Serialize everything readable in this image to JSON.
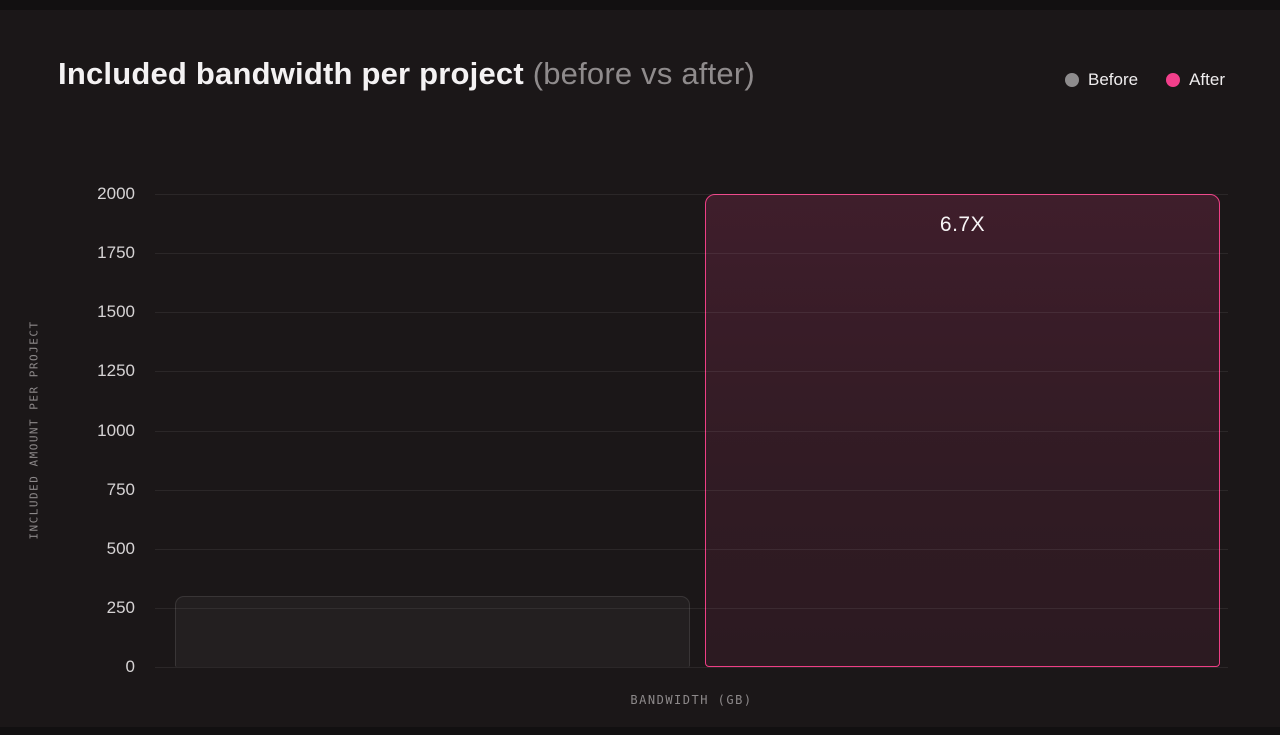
{
  "title": {
    "main": "Included bandwidth per project",
    "sub": "(before vs after)"
  },
  "legend": {
    "items": [
      {
        "label": "Before",
        "color": "#8e8c8d"
      },
      {
        "label": "After",
        "color": "#f23f8b"
      }
    ]
  },
  "chart_data": {
    "type": "bar",
    "title": "Included bandwidth per project (before vs after)",
    "xlabel": "BANDWIDTH (GB)",
    "ylabel": "INCLUDED AMOUNT PER PROJECT",
    "ylim": [
      0,
      2000
    ],
    "yticks": [
      0,
      250,
      500,
      750,
      1000,
      1250,
      1500,
      1750,
      2000
    ],
    "categories": [
      "Bandwidth (GB)"
    ],
    "series": [
      {
        "name": "Before",
        "values": [
          300
        ],
        "color": "#8e8c8d"
      },
      {
        "name": "After",
        "values": [
          2000
        ],
        "color": "#f23f8b"
      }
    ],
    "annotations": [
      {
        "text": "6.7X",
        "series": "After"
      }
    ],
    "grid": true,
    "legend_position": "top-right"
  }
}
